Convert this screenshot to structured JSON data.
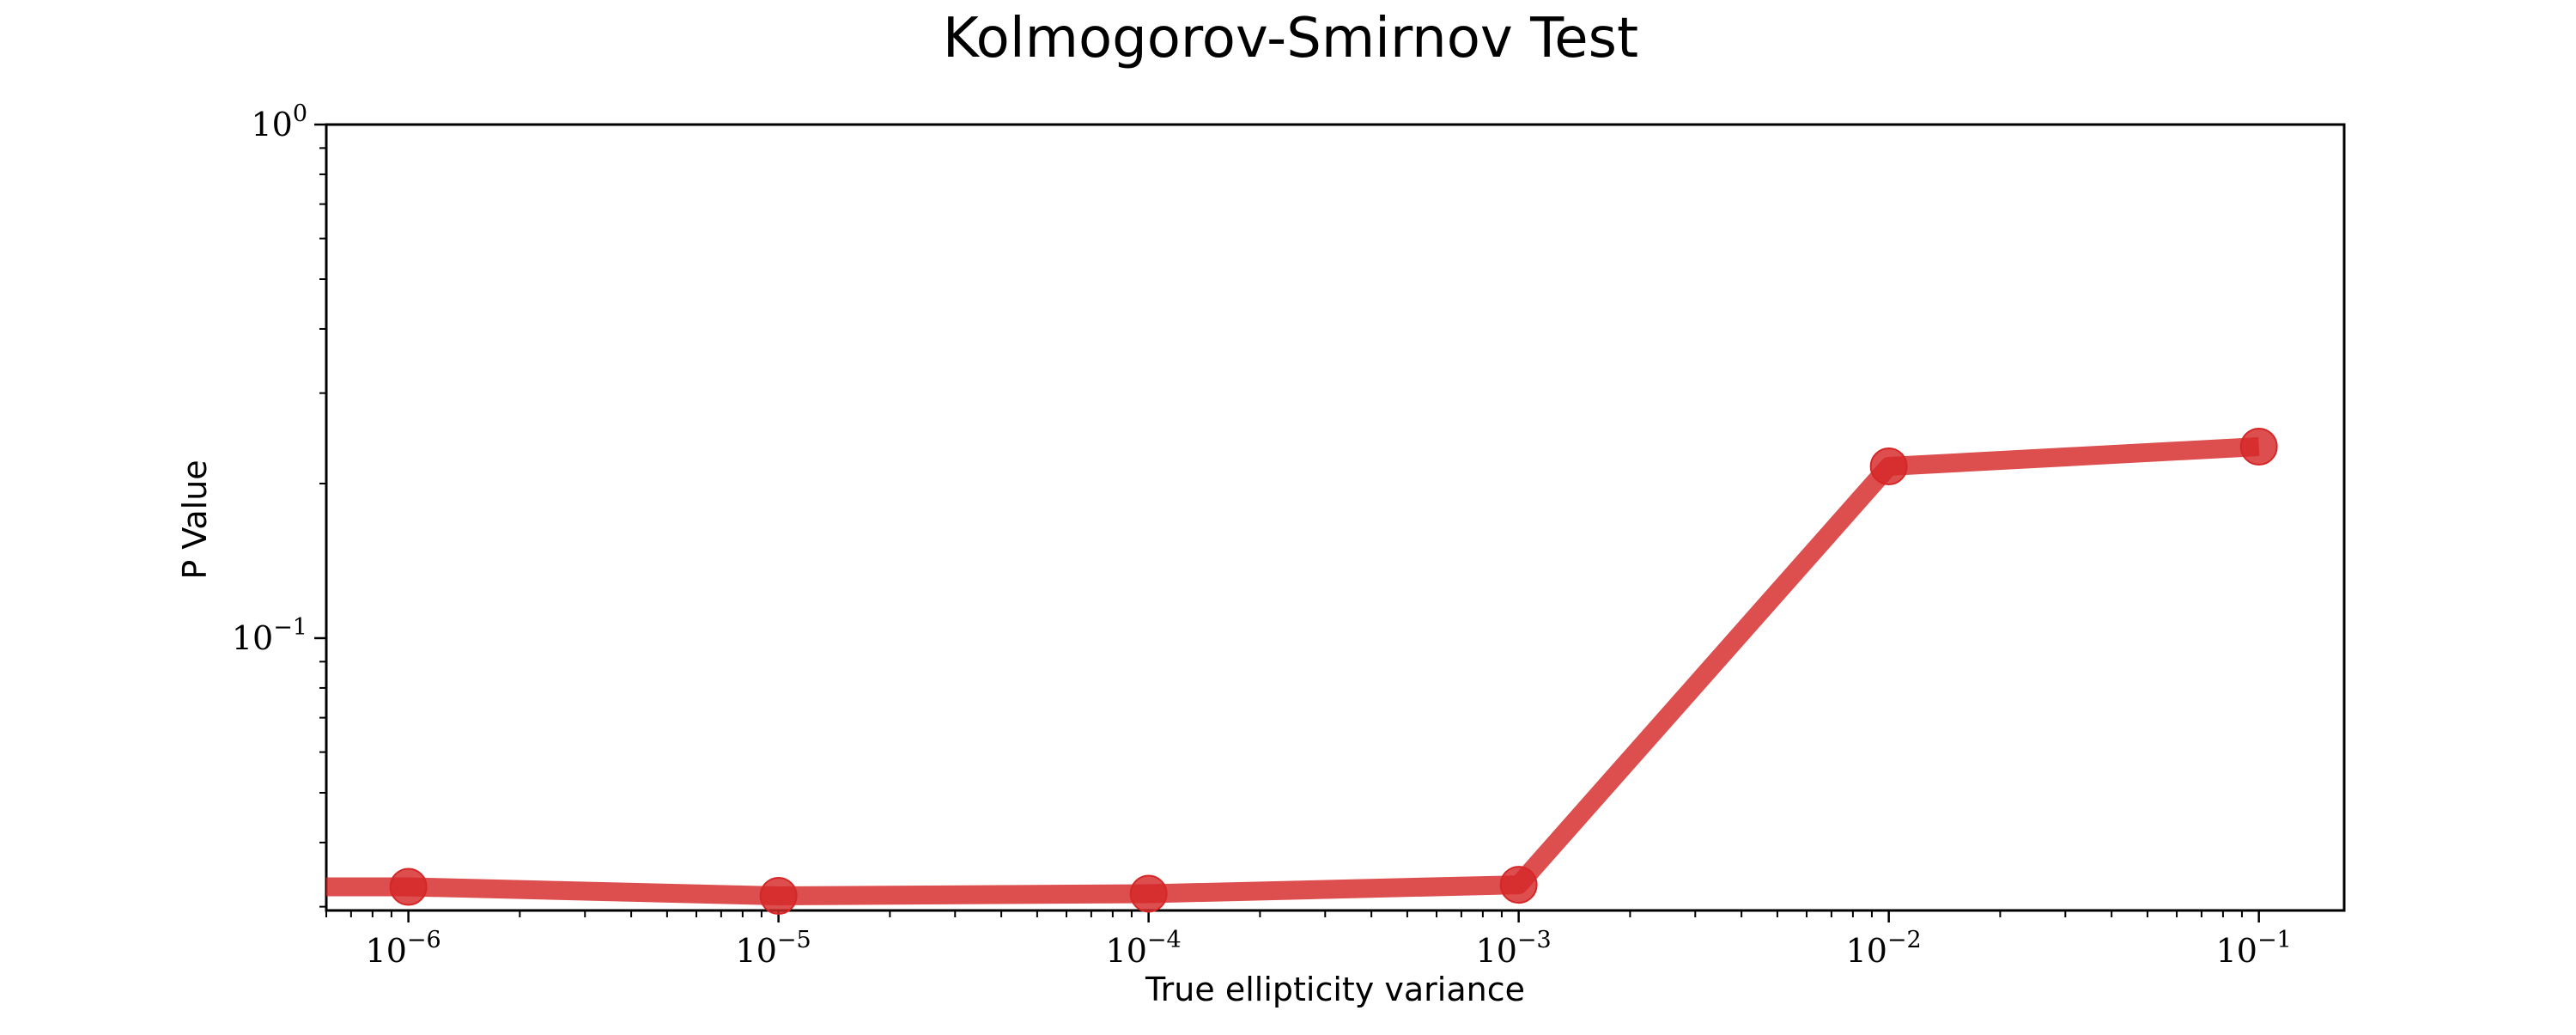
{
  "chart_data": {
    "type": "line",
    "title": "Kolmogorov-Smirnov Test",
    "xlabel": "True ellipticity variance",
    "ylabel": "P Value",
    "xscale": "log",
    "yscale": "log",
    "xlim": [
      6e-07,
      0.17
    ],
    "ylim": [
      0.0295,
      1.0
    ],
    "grid": false,
    "color": "#d62728",
    "x_ticks": [
      {
        "base": "10",
        "exp": "−6"
      },
      {
        "base": "10",
        "exp": "−5"
      },
      {
        "base": "10",
        "exp": "−4"
      },
      {
        "base": "10",
        "exp": "−3"
      },
      {
        "base": "10",
        "exp": "−2"
      },
      {
        "base": "10",
        "exp": "−1"
      }
    ],
    "x_tick_values": [
      1e-06,
      1e-05,
      0.0001,
      0.001,
      0.01,
      0.1
    ],
    "y_ticks": [
      {
        "base": "10",
        "exp": "−1"
      },
      {
        "base": "10",
        "exp": "0"
      }
    ],
    "y_tick_values": [
      0.1,
      1.0
    ],
    "series": [
      {
        "x": [
          6e-07,
          1e-06,
          1e-05,
          0.0001,
          0.001,
          0.01,
          0.1
        ],
        "y": [
          0.0328,
          0.0328,
          0.0315,
          0.0318,
          0.0331,
          0.216,
          0.236
        ],
        "markers": [
          false,
          true,
          true,
          true,
          true,
          true,
          true
        ]
      }
    ]
  }
}
